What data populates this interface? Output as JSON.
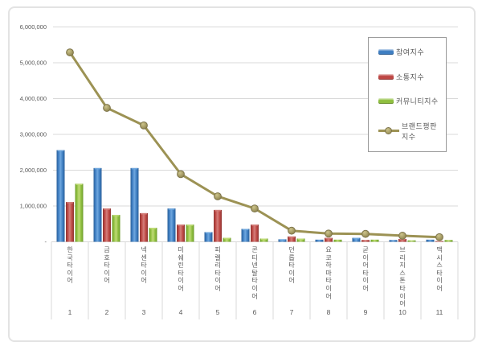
{
  "legend": {
    "items": [
      {
        "key": "participation",
        "label": "참여지수",
        "swatch": "bar",
        "color": "#3e7ec2"
      },
      {
        "key": "communication",
        "label": "소통지수",
        "swatch": "bar",
        "color": "#be4744"
      },
      {
        "key": "community",
        "label": "커뮤니티지수",
        "swatch": "bar",
        "color": "#8fbf3f"
      },
      {
        "key": "reputation",
        "label": "브랜드평판지수",
        "swatch": "line",
        "color": "#9c9254"
      }
    ]
  },
  "chart_data": {
    "type": "combo-bar-line",
    "title": "",
    "xlabel": "",
    "ylabel": "",
    "categories": [
      "한국타이어",
      "금호타이어",
      "넥센타이어",
      "미쉐린타이어",
      "피렐리타이어",
      "콘티넨탈타이어",
      "던롭타이어",
      "요코하마타이어",
      "굳이어타이어",
      "브리지스톤타이어",
      "맥시스타이어"
    ],
    "category_ranks": [
      "1",
      "2",
      "3",
      "4",
      "5",
      "6",
      "7",
      "8",
      "9",
      "10",
      "11"
    ],
    "series": [
      {
        "key": "participation",
        "name": "참여지수",
        "type": "bar",
        "color": "#3e7ec2",
        "color_dark": "#2b5f98",
        "color_light": "#6fa7de",
        "values": [
          2560000,
          2060000,
          2060000,
          930000,
          270000,
          360000,
          70000,
          60000,
          110000,
          50000,
          60000
        ]
      },
      {
        "key": "communication",
        "name": "소통지수",
        "type": "bar",
        "color": "#be4744",
        "color_dark": "#8e3532",
        "color_light": "#d47f7b",
        "values": [
          1110000,
          930000,
          800000,
          480000,
          890000,
          480000,
          150000,
          110000,
          50000,
          80000,
          20000
        ]
      },
      {
        "key": "community",
        "name": "커뮤니티지수",
        "type": "bar",
        "color": "#8fbf3f",
        "color_dark": "#6c9a2a",
        "color_light": "#c0db77",
        "values": [
          1620000,
          750000,
          390000,
          480000,
          110000,
          90000,
          90000,
          60000,
          60000,
          40000,
          50000
        ]
      },
      {
        "key": "reputation",
        "name": "브랜드평판지수",
        "type": "line",
        "color": "#9c9254",
        "marker_fill": "#b0a567",
        "marker_stroke": "#7d744a",
        "values": [
          5290000,
          3740000,
          3250000,
          1890000,
          1270000,
          930000,
          310000,
          230000,
          220000,
          170000,
          130000
        ]
      }
    ],
    "ylim": [
      0,
      6000000
    ],
    "yticks": [
      {
        "value": 6000000,
        "label": "6,000,000"
      },
      {
        "value": 5000000,
        "label": "5,000,000"
      },
      {
        "value": 4000000,
        "label": "4,000,000"
      },
      {
        "value": 3000000,
        "label": "3,000,000"
      },
      {
        "value": 2000000,
        "label": "2,000,000"
      },
      {
        "value": 1000000,
        "label": "1,000,000"
      },
      {
        "value": 0,
        "label": "-"
      }
    ],
    "grid": true,
    "legend_position": "top-right"
  }
}
